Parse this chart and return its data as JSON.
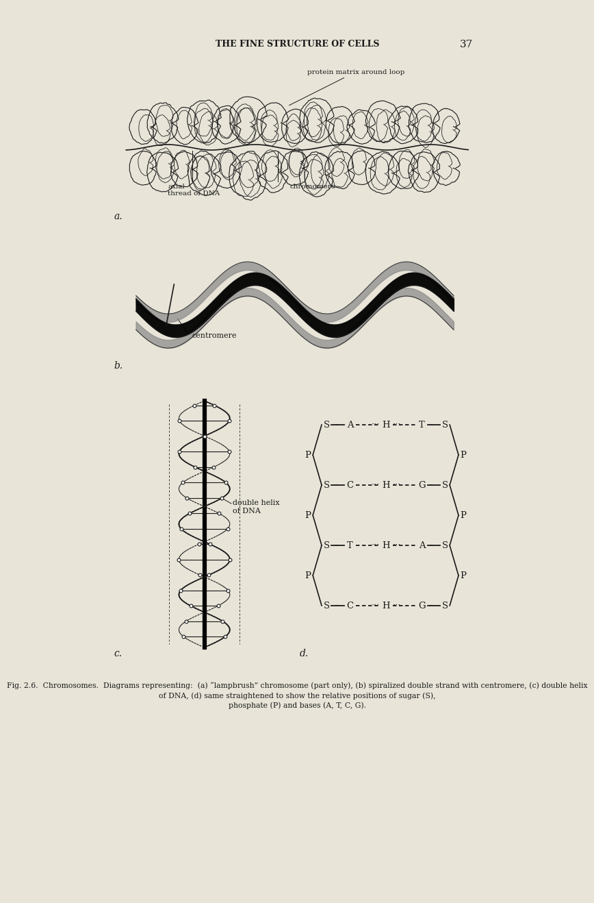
{
  "bg_color": "#e8e4d8",
  "text_color": "#1a1a1a",
  "page_title": "THE FINE STRUCTURE OF CELLS",
  "page_number": "37",
  "caption": "Fig. 2.6.  Chromosomes.  Diagrams representing:  (a) “lampbrush” chromosome (part only), (b) spiralized double strand with centromere, (c) double helix\nof DNA, (d) same straightened to show the relative positions of sugar (S),\nphosphate (P) and bases (A, T, C, G).",
  "label_a": "a.",
  "label_b": "b.",
  "label_c": "c.",
  "label_d": "d.",
  "annotation_protein": "protein matrix around loop",
  "annotation_axial": "axial\nthread of DNA",
  "annotation_chromomere": "chromomere",
  "annotation_centromere": "centromere",
  "annotation_dhelix": "double helix\nof DNA"
}
